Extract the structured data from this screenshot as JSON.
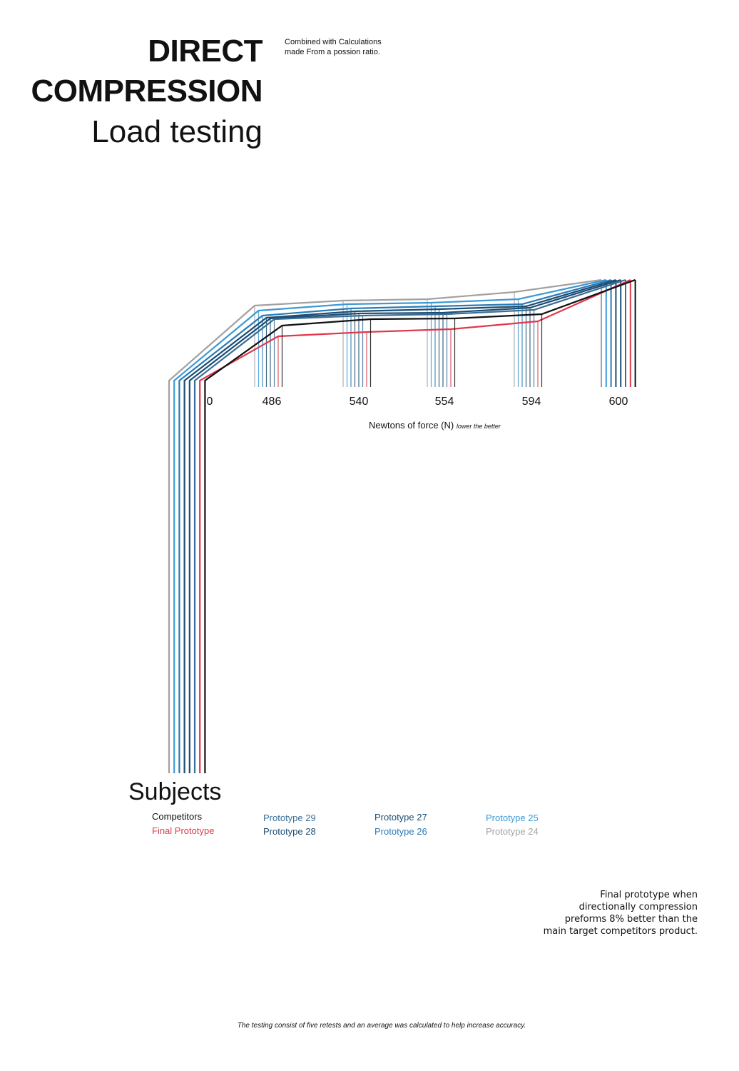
{
  "title": {
    "line1": "DIRECT",
    "line2": "COMPRESSION",
    "line3": "Load testing"
  },
  "note": "Combined with Calculations made From a possion ratio.",
  "side_note": "Final prototype when directionally compression preforms 8% better than the main target competitors product.",
  "footnote": "The testing consist of five retests and an average was calculated to help increase accuracy.",
  "legend": {
    "title": "Subjects",
    "items": [
      {
        "label": "Competitors",
        "color": "#111111"
      },
      {
        "label": "Final Prototype",
        "color": "#e0384c"
      },
      {
        "label": "Prototype 29",
        "color": "#3a6e98"
      },
      {
        "label": "Prototype 28",
        "color": "#1c4d72"
      },
      {
        "label": "Prototype 27",
        "color": "#1c4d72"
      },
      {
        "label": "Prototype 26",
        "color": "#2a7ab5"
      },
      {
        "label": "Prototype 25",
        "color": "#3d9ad6"
      },
      {
        "label": "Prototype 24",
        "color": "#a4a0a0"
      }
    ]
  },
  "chart_data": {
    "type": "line",
    "x_label": "Newtons of force (N)",
    "x_label_note": "lower the better",
    "categories": [
      "0",
      "486",
      "540",
      "554",
      "594",
      "600"
    ],
    "series": [
      {
        "name": "Prototype 24",
        "color": "#a4a0a0"
      },
      {
        "name": "Prototype 25",
        "color": "#3d9ad6"
      },
      {
        "name": "Prototype 26",
        "color": "#2a7ab5"
      },
      {
        "name": "Prototype 27",
        "color": "#1c4d72"
      },
      {
        "name": "Prototype 28",
        "color": "#1c4d72"
      },
      {
        "name": "Prototype 29",
        "color": "#3a6e98"
      },
      {
        "name": "Final Prototype",
        "color": "#e0384c"
      },
      {
        "name": "Competitors",
        "color": "#111111"
      }
    ]
  }
}
